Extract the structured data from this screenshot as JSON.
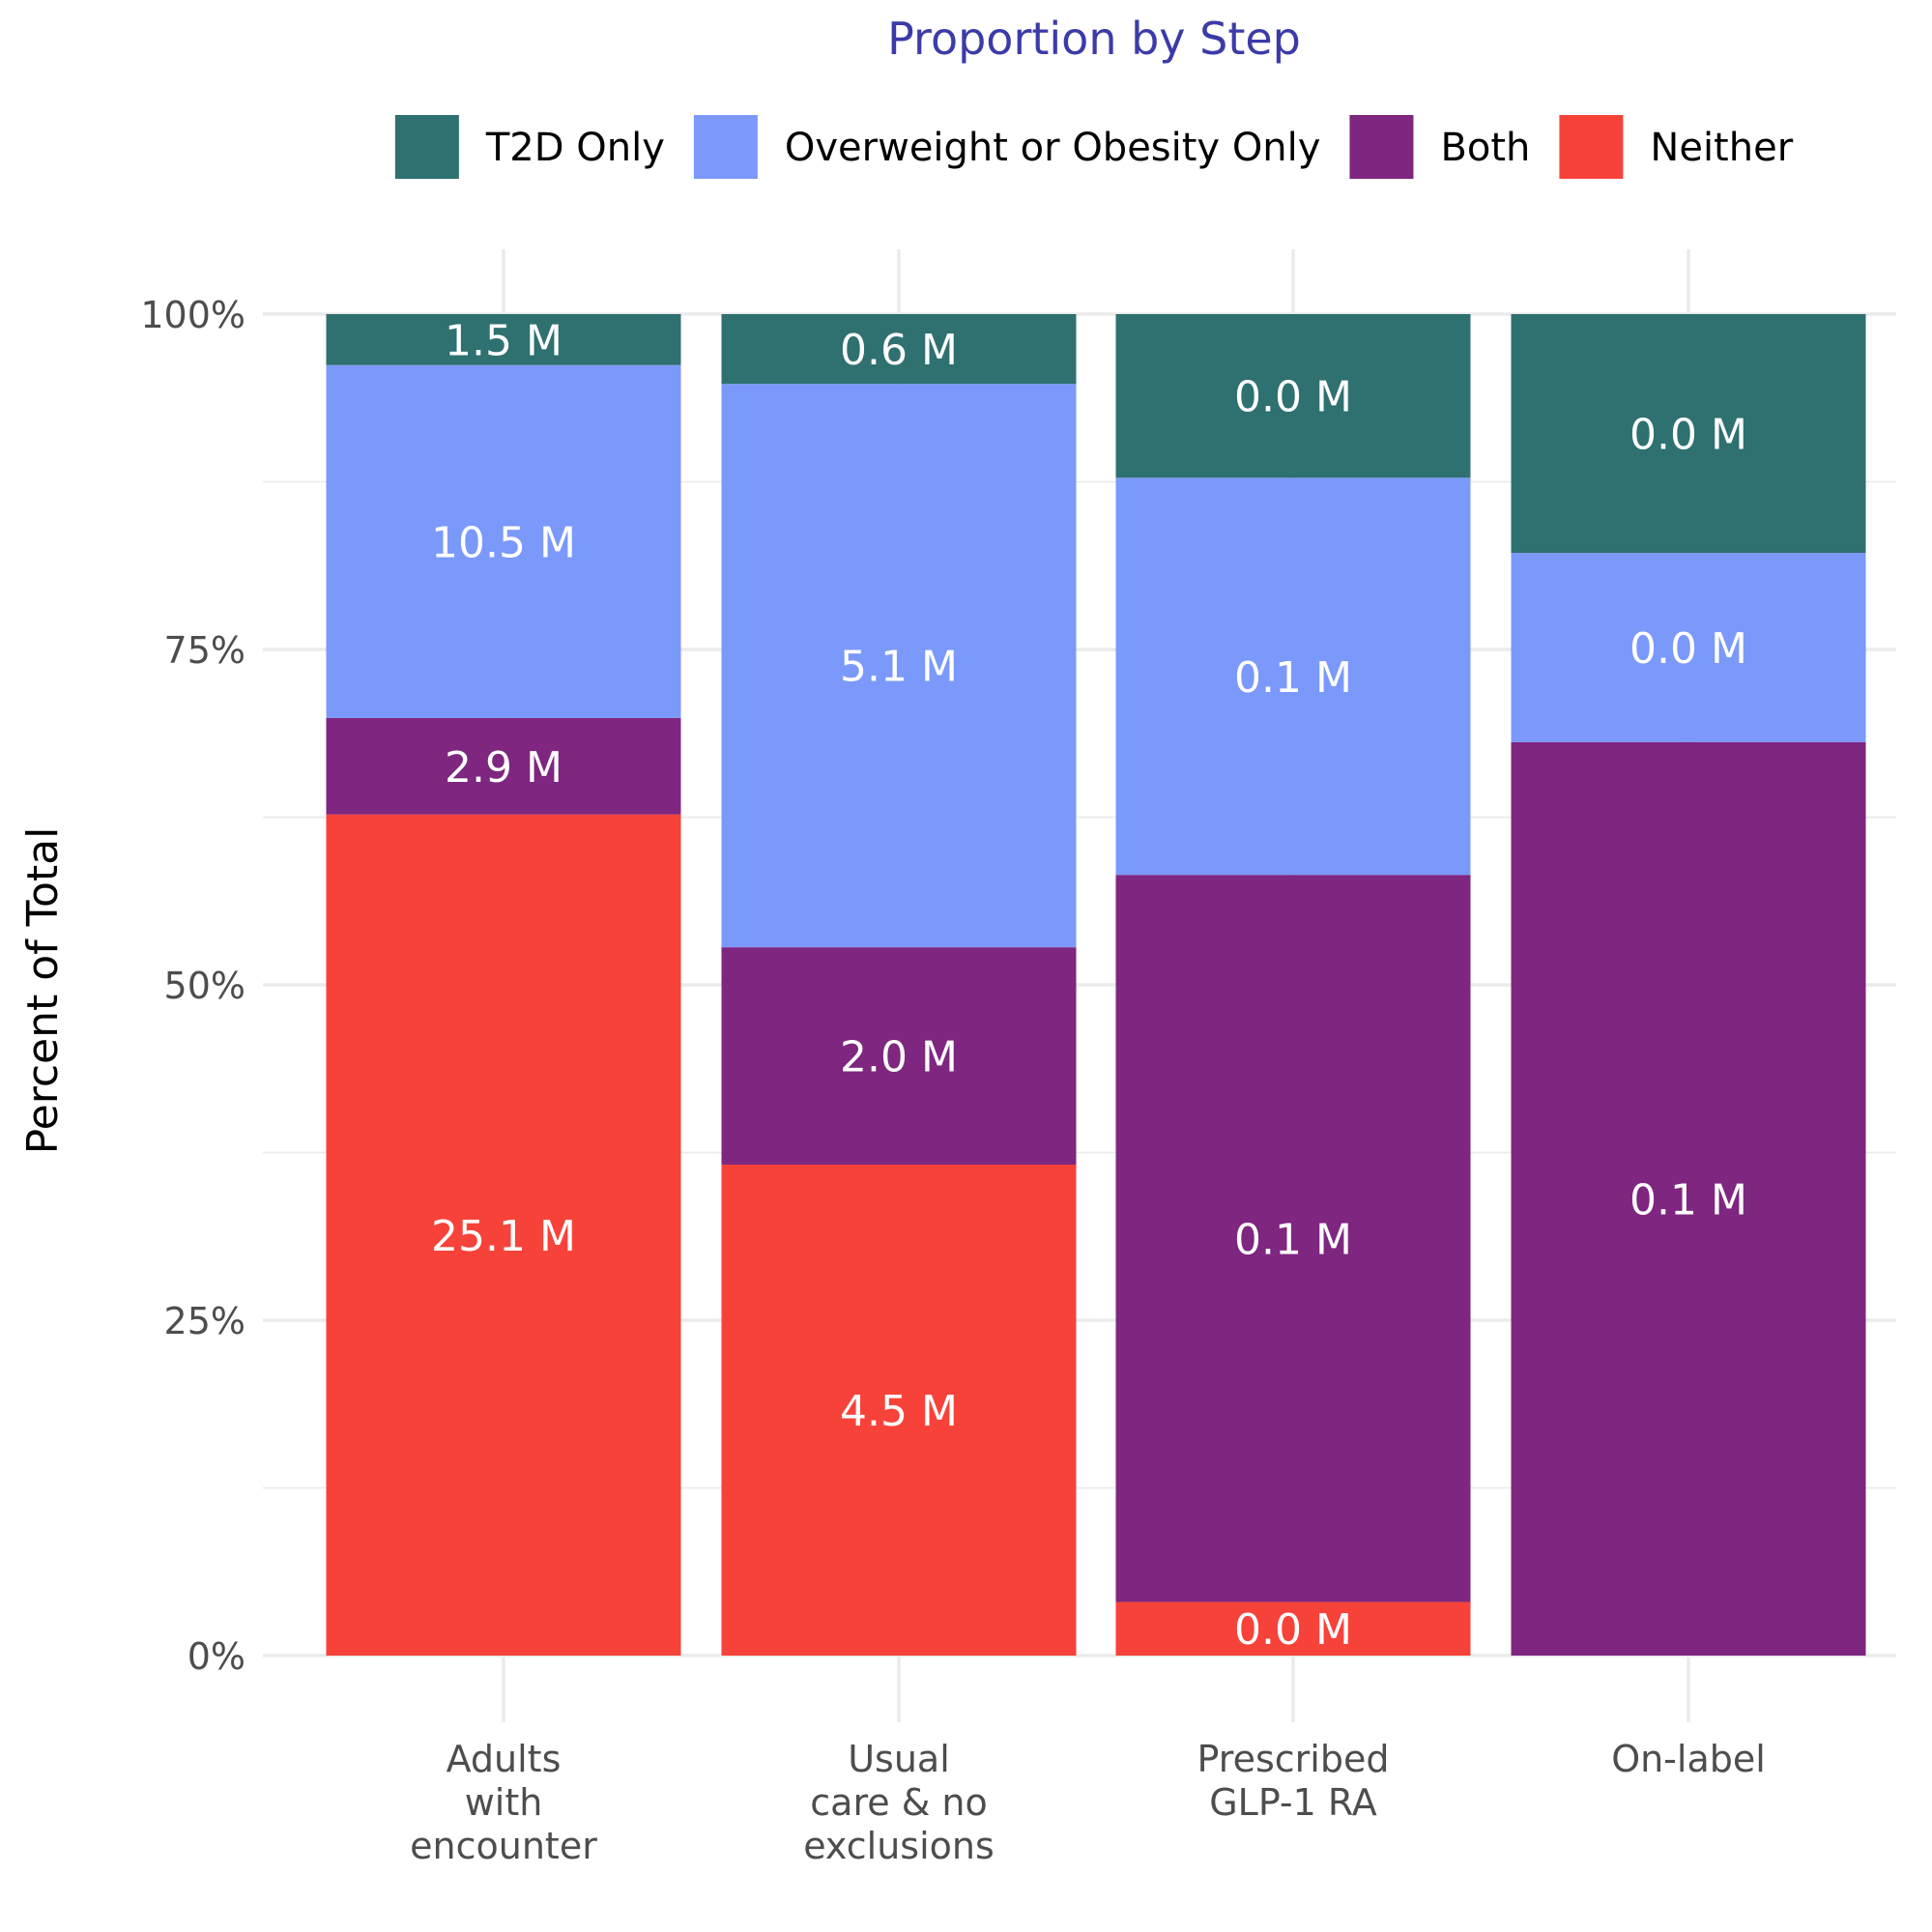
{
  "chart_data": {
    "type": "bar",
    "stacked": true,
    "normalized": true,
    "title": "Proportion by Step",
    "ylabel": "Percent of Total",
    "xlabel": "",
    "ylim": [
      0,
      100
    ],
    "yticks": [
      "0%",
      "25%",
      "50%",
      "75%",
      "100%"
    ],
    "ytick_values": [
      0,
      25,
      50,
      75,
      100
    ],
    "legend_position": "top",
    "grid": true,
    "categories": [
      [
        "Adults",
        "with",
        "encounter"
      ],
      [
        "Usual",
        "care & no",
        "exclusions"
      ],
      [
        "Prescribed",
        "GLP-1 RA"
      ],
      [
        "On-label"
      ]
    ],
    "series": [
      {
        "name": "T2D Only",
        "color": "#2F7070",
        "percent": [
          3.8,
          5.2,
          12.2,
          17.8
        ],
        "labels": [
          "1.5 M",
          "0.6 M",
          "0.0 M",
          "0.0 M"
        ]
      },
      {
        "name": "Overweight or Obesity Only",
        "color": "#7B99FA",
        "percent": [
          26.3,
          42.0,
          29.6,
          14.1
        ],
        "labels": [
          "10.5 M",
          "5.1 M",
          "0.1 M",
          "0.0 M"
        ]
      },
      {
        "name": "Both",
        "color": "#7E2680",
        "percent": [
          7.2,
          16.2,
          54.2,
          68.1
        ],
        "labels": [
          "2.9 M",
          "2.0 M",
          "0.1 M",
          "0.1 M"
        ]
      },
      {
        "name": "Neither",
        "color": "#F7423A",
        "percent": [
          62.7,
          36.6,
          4.0,
          0.0
        ],
        "labels": [
          "25.1 M",
          "4.5 M",
          "0.0 M",
          null
        ]
      }
    ],
    "colors": {
      "title": "#3B3BA8",
      "grid": "#EBEBEB",
      "tick_text": "#4D4D4D",
      "axis_title": "#000000",
      "bar_label": "#FFFFFF"
    }
  }
}
